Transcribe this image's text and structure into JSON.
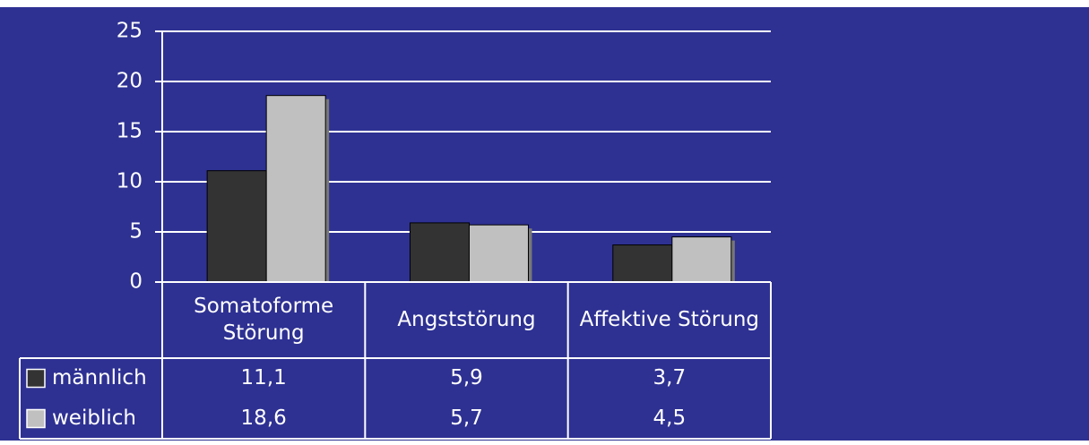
{
  "chart_data": {
    "type": "bar",
    "categories": [
      "Somatoforme Störung",
      "Angststörung",
      "Affektive Störung"
    ],
    "series": [
      {
        "name": "männlich",
        "color": "#333333",
        "values": [
          11.1,
          5.9,
          3.7
        ],
        "value_labels": [
          "11,1",
          "5,9",
          "3,7"
        ]
      },
      {
        "name": "weiblich",
        "color": "#c0c0c0",
        "values": [
          18.6,
          5.7,
          4.5
        ],
        "value_labels": [
          "18,6",
          "5,7",
          "4,5"
        ]
      }
    ],
    "ylim": [
      0,
      25
    ],
    "yticks": [
      0,
      5,
      10,
      15,
      20,
      25
    ],
    "grid": true
  }
}
